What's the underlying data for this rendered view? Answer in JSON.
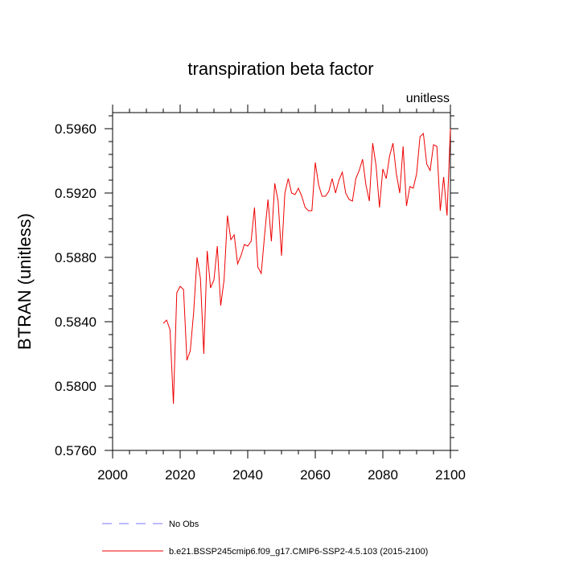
{
  "chart_data": {
    "type": "line",
    "title": "transpiration beta factor",
    "units_label": "unitless",
    "xlabel": "",
    "ylabel": "BTRAN  (unitless)",
    "xlim": [
      2000,
      2100
    ],
    "ylim": [
      0.576,
      0.597
    ],
    "xticks": [
      2000,
      2020,
      2040,
      2060,
      2080,
      2100
    ],
    "yticks": [
      0.576,
      0.58,
      0.584,
      0.588,
      0.592,
      0.596
    ],
    "ytick_labels": [
      "0.5760",
      "0.5800",
      "0.5840",
      "0.5880",
      "0.5920",
      "0.5960"
    ],
    "legend": [
      {
        "name": "No Obs",
        "color": "#7777ff",
        "style": "dashed"
      },
      {
        "name": "b.e21.BSSP245cmip6.f09_g17.CMIP6-SSP2-4.5.103 (2015-2100)",
        "color": "#ee0000",
        "style": "solid"
      }
    ],
    "series": [
      {
        "name": "b.e21.BSSP245cmip6.f09_g17.CMIP6-SSP2-4.5.103 (2015-2100)",
        "color": "#ee0000",
        "x": [
          2015,
          2016,
          2017,
          2018,
          2019,
          2020,
          2021,
          2022,
          2023,
          2024,
          2025,
          2026,
          2027,
          2028,
          2029,
          2030,
          2031,
          2032,
          2033,
          2034,
          2035,
          2036,
          2037,
          2038,
          2039,
          2040,
          2041,
          2042,
          2043,
          2044,
          2045,
          2046,
          2047,
          2048,
          2049,
          2050,
          2051,
          2052,
          2053,
          2054,
          2055,
          2056,
          2057,
          2058,
          2059,
          2060,
          2061,
          2062,
          2063,
          2064,
          2065,
          2066,
          2067,
          2068,
          2069,
          2070,
          2071,
          2072,
          2073,
          2074,
          2075,
          2076,
          2077,
          2078,
          2079,
          2080,
          2081,
          2082,
          2083,
          2084,
          2085,
          2086,
          2087,
          2088,
          2089,
          2090,
          2091,
          2092,
          2093,
          2094,
          2095,
          2096,
          2097,
          2098,
          2099,
          2100
        ],
        "values": [
          0.5839,
          0.5841,
          0.5835,
          0.5789,
          0.5858,
          0.5862,
          0.586,
          0.5816,
          0.5822,
          0.5846,
          0.588,
          0.5867,
          0.582,
          0.5884,
          0.5861,
          0.5866,
          0.5887,
          0.585,
          0.5866,
          0.5906,
          0.5891,
          0.5894,
          0.5876,
          0.5881,
          0.5888,
          0.5887,
          0.589,
          0.5911,
          0.5874,
          0.587,
          0.5894,
          0.5916,
          0.589,
          0.5926,
          0.5915,
          0.5881,
          0.592,
          0.5929,
          0.592,
          0.5919,
          0.5923,
          0.5918,
          0.5911,
          0.5909,
          0.5909,
          0.5939,
          0.5925,
          0.5918,
          0.5918,
          0.5921,
          0.5929,
          0.592,
          0.5928,
          0.5933,
          0.592,
          0.5916,
          0.5915,
          0.5929,
          0.5934,
          0.5941,
          0.5925,
          0.5915,
          0.5951,
          0.5937,
          0.5911,
          0.5935,
          0.5929,
          0.5943,
          0.5951,
          0.5932,
          0.592,
          0.5949,
          0.5912,
          0.5924,
          0.5923,
          0.5932,
          0.5955,
          0.5957,
          0.5938,
          0.5934,
          0.595,
          0.5949,
          0.5909,
          0.593,
          0.5906,
          0.596
        ]
      }
    ]
  }
}
